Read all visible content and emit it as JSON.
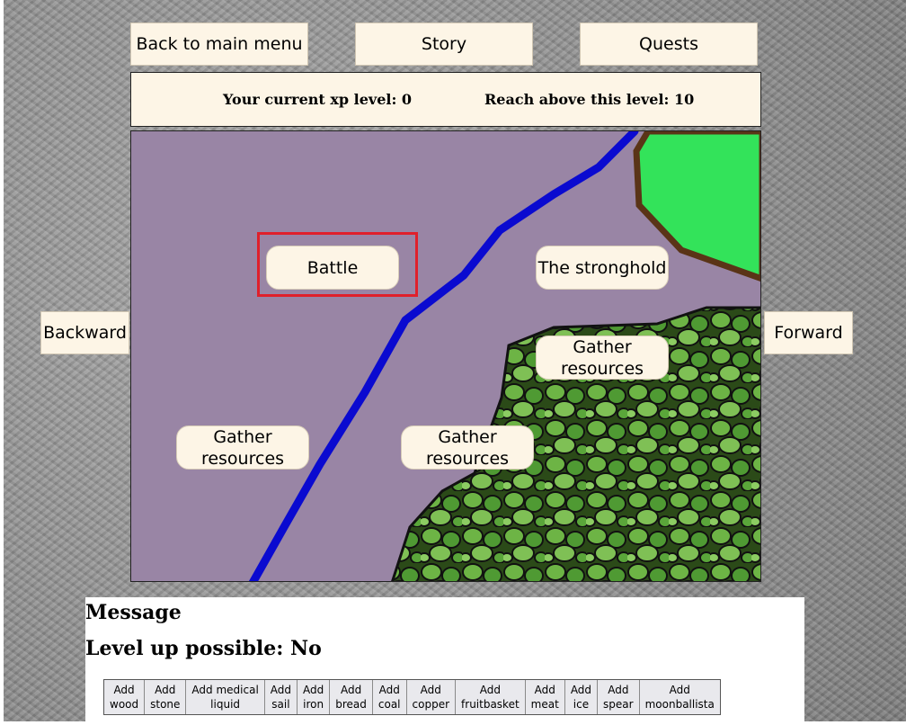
{
  "nav": {
    "main_menu": "Back to main menu",
    "story": "Story",
    "quests": "Quests",
    "backward": "Backward",
    "forward": "Forward"
  },
  "xp": {
    "current": "Your current xp level: 0",
    "target": "Reach above this level: 10"
  },
  "map": {
    "locations": {
      "battle": "Battle",
      "stronghold": "The stronghold",
      "gather_1": "Gather resources",
      "gather_2": "Gather resources",
      "gather_3": "Gather resources"
    },
    "colors": {
      "ground": "#9985a5",
      "river": "#0a0ad0",
      "grass": "#33e35a",
      "grass_border": "#5a3417",
      "foliage": "#5aa63a"
    }
  },
  "messages": {
    "title": "Message",
    "level_up": "Level up possible: No"
  },
  "add_buttons": [
    {
      "line1": "Add",
      "line2": "wood"
    },
    {
      "line1": "Add",
      "line2": "stone"
    },
    {
      "line1": "Add medical",
      "line2": "liquid"
    },
    {
      "line1": "Add",
      "line2": "sail"
    },
    {
      "line1": "Add",
      "line2": "iron"
    },
    {
      "line1": "Add",
      "line2": "bread"
    },
    {
      "line1": "Add",
      "line2": "coal"
    },
    {
      "line1": "Add",
      "line2": "copper"
    },
    {
      "line1": "Add",
      "line2": "fruitbasket"
    },
    {
      "line1": "Add",
      "line2": "meat"
    },
    {
      "line1": "Add",
      "line2": "ice"
    },
    {
      "line1": "Add",
      "line2": "spear"
    },
    {
      "line1": "Add",
      "line2": "moonballista"
    }
  ]
}
